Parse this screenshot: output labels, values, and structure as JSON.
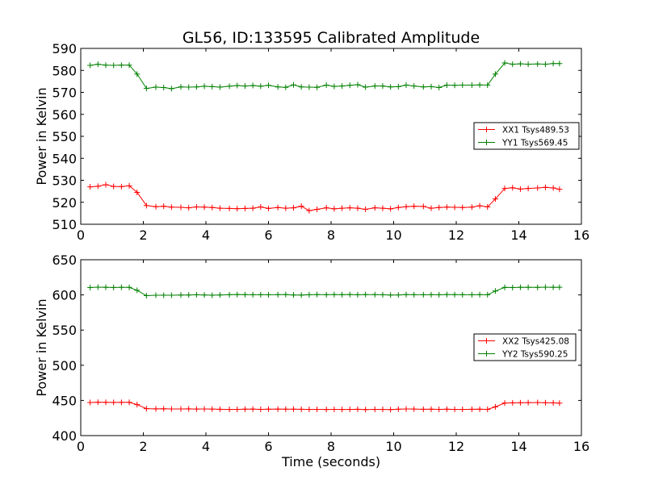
{
  "chart_data": [
    {
      "type": "line",
      "title": "GL56, ID:133595 Calibrated Amplitude",
      "xlabel": "",
      "ylabel": "Power in Kelvin",
      "xlim": [
        0,
        16
      ],
      "ylim": [
        510,
        590
      ],
      "xticks": [
        0,
        2,
        4,
        6,
        8,
        10,
        12,
        14,
        16
      ],
      "yticks": [
        510,
        520,
        530,
        540,
        550,
        560,
        570,
        580,
        590
      ],
      "legend_position": "center-right",
      "x": [
        0.3,
        0.55,
        0.8,
        1.05,
        1.3,
        1.55,
        1.8,
        2.1,
        2.4,
        2.65,
        2.9,
        3.2,
        3.45,
        3.7,
        3.95,
        4.2,
        4.45,
        4.75,
        5.0,
        5.25,
        5.5,
        5.75,
        6.0,
        6.3,
        6.55,
        6.8,
        7.05,
        7.3,
        7.55,
        7.85,
        8.1,
        8.35,
        8.6,
        8.85,
        9.1,
        9.4,
        9.65,
        9.9,
        10.15,
        10.4,
        10.65,
        10.95,
        11.2,
        11.45,
        11.7,
        11.95,
        12.2,
        12.5,
        12.75,
        13.0,
        13.25,
        13.55,
        13.8,
        14.05,
        14.3,
        14.6,
        14.85,
        15.1,
        15.3
      ],
      "series": [
        {
          "name": "XX1 Tsys489.53",
          "color": "#ff0000",
          "values": [
            527,
            527.3,
            528,
            527.2,
            527.1,
            527.5,
            524.5,
            518.5,
            518,
            518.2,
            517.8,
            517.7,
            517.5,
            517.9,
            517.8,
            517.6,
            517.3,
            517.2,
            517.1,
            517.2,
            517.3,
            517.9,
            517.2,
            517.6,
            517.3,
            517.5,
            518.2,
            516.2,
            516.8,
            517.5,
            517,
            517.3,
            517.5,
            517.3,
            516.8,
            517.5,
            517.3,
            517,
            517.6,
            518,
            518.2,
            518.1,
            517.3,
            517.6,
            517.8,
            517.7,
            517.6,
            517.8,
            518.4,
            517.9,
            521.5,
            526.3,
            526.6,
            526,
            526.3,
            526.5,
            526.8,
            526.5,
            525.9
          ]
        },
        {
          "name": "YY1 Tsys569.45",
          "color": "#008000",
          "values": [
            582.3,
            582.8,
            582.4,
            582.3,
            582.4,
            582.4,
            578.3,
            571.8,
            572.4,
            572.2,
            571.7,
            572.5,
            572.4,
            572.5,
            572.8,
            572.6,
            572.4,
            572.8,
            573.1,
            572.9,
            573.1,
            572.8,
            573.2,
            572.5,
            572.3,
            573.4,
            572.5,
            572.4,
            572.3,
            573.3,
            572.7,
            572.9,
            573.2,
            573.5,
            572.4,
            572.9,
            572.9,
            572.5,
            572.6,
            573.3,
            572.9,
            572.5,
            572.6,
            572.2,
            573.3,
            573.2,
            573.3,
            573.3,
            573.4,
            573.3,
            578.3,
            583.4,
            582.8,
            583,
            582.8,
            582.9,
            582.8,
            583.1,
            583.1
          ]
        }
      ]
    },
    {
      "type": "line",
      "title": "",
      "xlabel": "Time (seconds)",
      "ylabel": "Power in Kelvin",
      "xlim": [
        0,
        16
      ],
      "ylim": [
        400,
        650
      ],
      "xticks": [
        0,
        2,
        4,
        6,
        8,
        10,
        12,
        14,
        16
      ],
      "yticks": [
        400,
        450,
        500,
        550,
        600,
        650
      ],
      "legend_position": "center-right",
      "x": [
        0.3,
        0.55,
        0.8,
        1.05,
        1.3,
        1.55,
        1.8,
        2.1,
        2.4,
        2.65,
        2.9,
        3.2,
        3.45,
        3.7,
        3.95,
        4.2,
        4.45,
        4.75,
        5.0,
        5.25,
        5.5,
        5.75,
        6.0,
        6.3,
        6.55,
        6.8,
        7.05,
        7.3,
        7.55,
        7.85,
        8.1,
        8.35,
        8.6,
        8.85,
        9.1,
        9.4,
        9.65,
        9.9,
        10.15,
        10.4,
        10.65,
        10.95,
        11.2,
        11.45,
        11.7,
        11.95,
        12.2,
        12.5,
        12.75,
        13.0,
        13.25,
        13.55,
        13.8,
        14.05,
        14.3,
        14.6,
        14.85,
        15.1,
        15.3
      ],
      "series": [
        {
          "name": "XX2 Tsys425.08",
          "color": "#ff0000",
          "values": [
            447,
            447.5,
            447.3,
            447.1,
            447.2,
            447.3,
            444,
            438.3,
            438,
            438.2,
            437.8,
            437.9,
            438,
            437.7,
            437.9,
            437.7,
            437.4,
            437.2,
            437.3,
            437.5,
            437.7,
            437.3,
            437.5,
            437.7,
            437.5,
            437.6,
            437.4,
            437.2,
            437.3,
            437.1,
            437.3,
            437.1,
            437.2,
            437.4,
            437,
            437.3,
            437.2,
            437,
            437.6,
            437.8,
            437.7,
            437.4,
            437.6,
            437.3,
            437.5,
            437.2,
            437.2,
            437.4,
            437.5,
            437.3,
            440.8,
            446.3,
            446.6,
            446.8,
            446.9,
            447,
            446.8,
            446.6,
            446.2
          ]
        },
        {
          "name": "YY2 Tsys590.25",
          "color": "#008000",
          "values": [
            610.5,
            611,
            610.8,
            610.6,
            610.8,
            610.7,
            606.5,
            599,
            599.5,
            599.6,
            599.5,
            599.8,
            599.9,
            600.2,
            599.9,
            599.6,
            599.9,
            600.3,
            600.6,
            600.4,
            600.2,
            600.3,
            600.2,
            600.4,
            600.5,
            599.9,
            599.8,
            600.2,
            600.5,
            600.3,
            600.5,
            600.4,
            600.6,
            600.2,
            600.5,
            600.4,
            600.2,
            599.8,
            600,
            600.5,
            600.3,
            600.2,
            600.3,
            600.2,
            600.5,
            600.4,
            600.3,
            600.2,
            600.4,
            600.2,
            605.5,
            610.7,
            610.5,
            610.8,
            610.9,
            610.7,
            611,
            610.8,
            610.9
          ]
        }
      ]
    }
  ]
}
